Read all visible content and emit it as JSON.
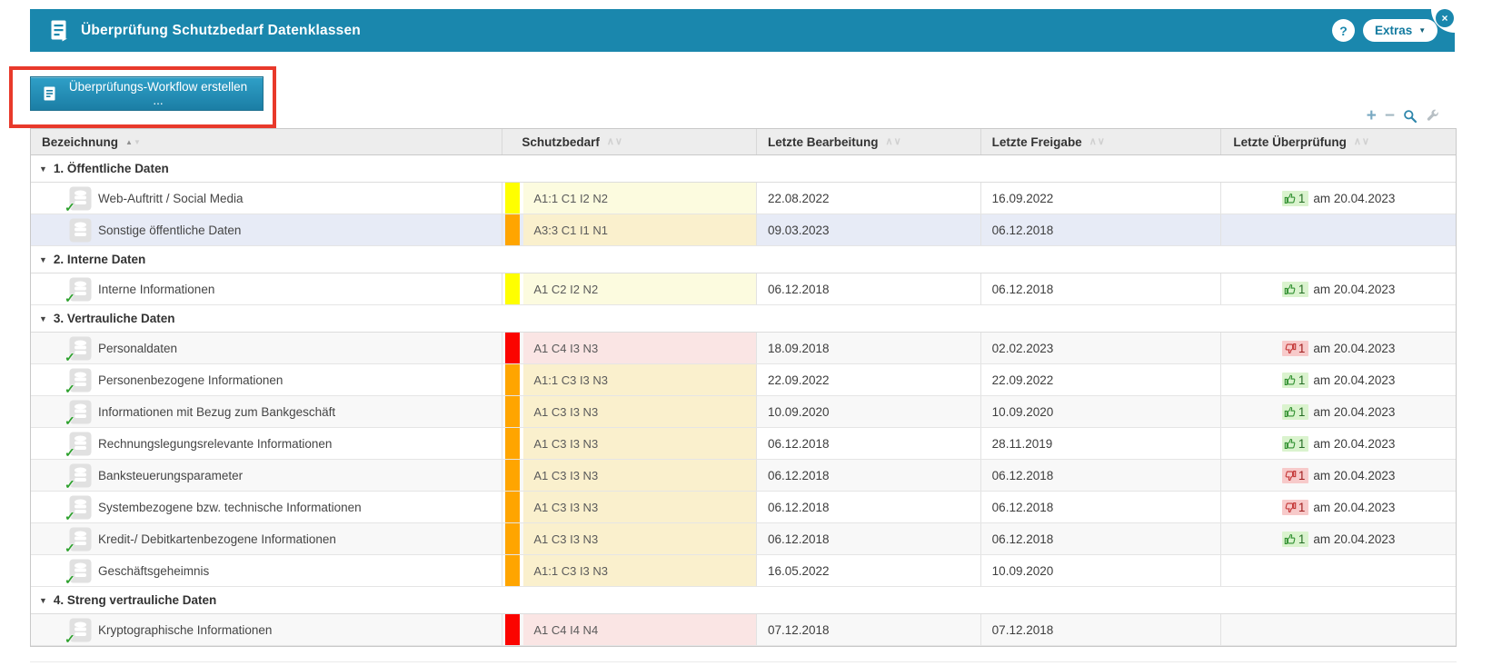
{
  "titlebar": {
    "title": "Überprüfung Schutzbedarf Datenklassen",
    "help_label": "?",
    "extras_label": "Extras",
    "close_label": "×"
  },
  "action_button": {
    "label": "Überprüfungs-Workflow erstellen ..."
  },
  "table_tools": {
    "add_glyph": "+",
    "remove_glyph": "−",
    "icons": [
      "add-icon",
      "remove-icon",
      "search-icon",
      "wrench-icon"
    ]
  },
  "table": {
    "columns": [
      {
        "label": "Bezeichnung",
        "sorted": "asc"
      },
      {
        "label": "Schutzbedarf",
        "sorted": "none"
      },
      {
        "label": "Letzte Bearbeitung",
        "sorted": "none"
      },
      {
        "label": "Letzte Freigabe",
        "sorted": "none"
      },
      {
        "label": "Letzte Überprüfung",
        "sorted": "none"
      }
    ],
    "groups": [
      {
        "label": "1. Öffentliche Daten",
        "rows": [
          {
            "name": "Web-Auftritt / Social Media",
            "checked": true,
            "severity": "yellow",
            "schutzbedarf": "A1:1 C1 I2 N2",
            "bearbeitung": "22.08.2022",
            "freigabe": "16.09.2022",
            "review": {
              "vote": "up",
              "count": "1",
              "date": "am 20.04.2023"
            },
            "selected": false
          },
          {
            "name": "Sonstige öffentliche Daten",
            "checked": false,
            "severity": "orange",
            "schutzbedarf": "A3:3 C1 I1 N1",
            "bearbeitung": "09.03.2023",
            "freigabe": "06.12.2018",
            "review": null,
            "selected": true
          }
        ]
      },
      {
        "label": "2. Interne Daten",
        "rows": [
          {
            "name": "Interne Informationen",
            "checked": true,
            "severity": "yellow",
            "schutzbedarf": "A1 C2 I2 N2",
            "bearbeitung": "06.12.2018",
            "freigabe": "06.12.2018",
            "review": {
              "vote": "up",
              "count": "1",
              "date": "am 20.04.2023"
            },
            "selected": false
          }
        ]
      },
      {
        "label": "3. Vertrauliche Daten",
        "rows": [
          {
            "name": "Personaldaten",
            "checked": true,
            "severity": "red",
            "schutzbedarf": "A1 C4 I3 N3",
            "bearbeitung": "18.09.2018",
            "freigabe": "02.02.2023",
            "review": {
              "vote": "down",
              "count": "1",
              "date": "am 20.04.2023"
            },
            "selected": false
          },
          {
            "name": "Personenbezogene Informationen",
            "checked": true,
            "severity": "orange",
            "schutzbedarf": "A1:1 C3 I3 N3",
            "bearbeitung": "22.09.2022",
            "freigabe": "22.09.2022",
            "review": {
              "vote": "up",
              "count": "1",
              "date": "am 20.04.2023"
            },
            "selected": false
          },
          {
            "name": "Informationen mit Bezug zum Bankgeschäft",
            "checked": true,
            "severity": "orange",
            "schutzbedarf": "A1 C3 I3 N3",
            "bearbeitung": "10.09.2020",
            "freigabe": "10.09.2020",
            "review": {
              "vote": "up",
              "count": "1",
              "date": "am 20.04.2023"
            },
            "selected": false
          },
          {
            "name": "Rechnungslegungsrelevante Informationen",
            "checked": true,
            "severity": "orange",
            "schutzbedarf": "A1 C3 I3 N3",
            "bearbeitung": "06.12.2018",
            "freigabe": "28.11.2019",
            "review": {
              "vote": "up",
              "count": "1",
              "date": "am 20.04.2023"
            },
            "selected": false
          },
          {
            "name": "Banksteuerungsparameter",
            "checked": true,
            "severity": "orange",
            "schutzbedarf": "A1 C3 I3 N3",
            "bearbeitung": "06.12.2018",
            "freigabe": "06.12.2018",
            "review": {
              "vote": "down",
              "count": "1",
              "date": "am 20.04.2023"
            },
            "selected": false
          },
          {
            "name": "Systembezogene bzw. technische Informationen",
            "checked": true,
            "severity": "orange",
            "schutzbedarf": "A1 C3 I3 N3",
            "bearbeitung": "06.12.2018",
            "freigabe": "06.12.2018",
            "review": {
              "vote": "down",
              "count": "1",
              "date": "am 20.04.2023"
            },
            "selected": false
          },
          {
            "name": "Kredit-/ Debitkartenbezogene Informationen",
            "checked": true,
            "severity": "orange",
            "schutzbedarf": "A1 C3 I3 N3",
            "bearbeitung": "06.12.2018",
            "freigabe": "06.12.2018",
            "review": {
              "vote": "up",
              "count": "1",
              "date": "am 20.04.2023"
            },
            "selected": false
          },
          {
            "name": "Geschäftsgeheimnis",
            "checked": true,
            "severity": "orange",
            "schutzbedarf": "A1:1 C3 I3 N3",
            "bearbeitung": "16.05.2022",
            "freigabe": "10.09.2020",
            "review": null,
            "selected": false
          }
        ]
      },
      {
        "label": "4. Streng vertrauliche Daten",
        "rows": [
          {
            "name": "Kryptographische Informationen",
            "checked": true,
            "severity": "red",
            "schutzbedarf": "A1 C4 I4 N4",
            "bearbeitung": "07.12.2018",
            "freigabe": "07.12.2018",
            "review": null,
            "selected": false
          }
        ]
      }
    ]
  },
  "colors": {
    "accent_blue": "#1a87ad",
    "annotation_red": "#e8392b",
    "severity_yellow": "#ffff00",
    "severity_orange": "#ffa500",
    "severity_red": "#fb0400",
    "vote_up_green": "#2e8f2e",
    "vote_down_red": "#c33434",
    "selected_row_blue": "#e7ebf6"
  }
}
